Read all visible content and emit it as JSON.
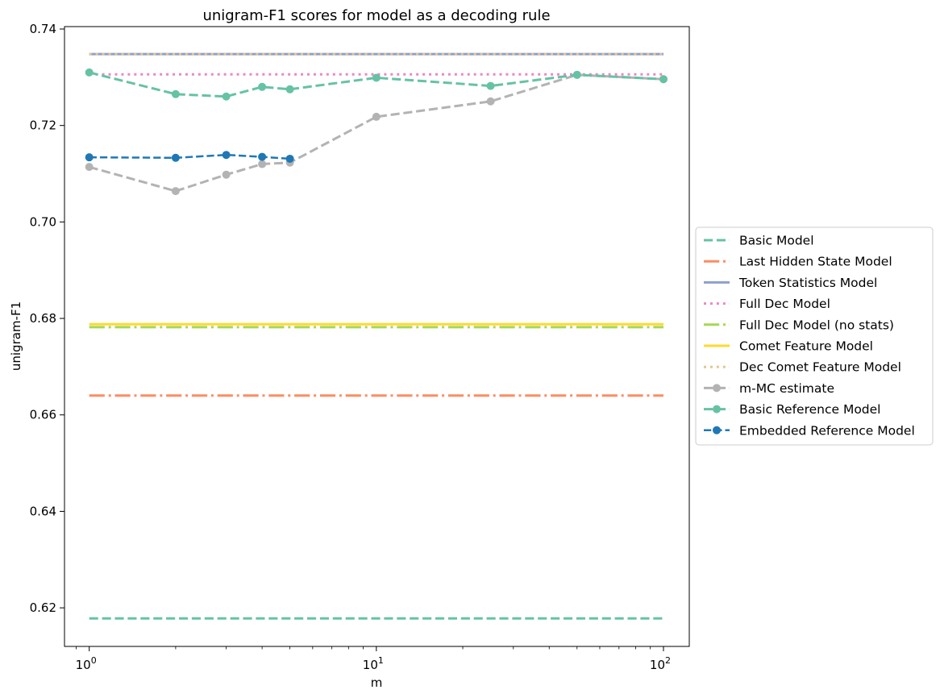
{
  "chart_data": {
    "type": "line",
    "title": "unigram-F1 scores for model as a decoding rule",
    "xlabel": "m",
    "ylabel": "unigram-F1",
    "xscale": "log",
    "xlim": [
      0.82,
      123
    ],
    "ylim": [
      0.612,
      0.7405
    ],
    "grid": false,
    "legend_position": "center-right-outside",
    "x_ticks": [
      {
        "value": 1,
        "base": "10",
        "exp": "0"
      },
      {
        "value": 10,
        "base": "10",
        "exp": "1"
      },
      {
        "value": 100,
        "base": "10",
        "exp": "2"
      }
    ],
    "y_ticks": [
      "0.62",
      "0.64",
      "0.66",
      "0.68",
      "0.70",
      "0.72",
      "0.74"
    ],
    "series": [
      {
        "name": "Basic Model",
        "kind": "hline",
        "x": [
          1,
          100
        ],
        "y": [
          0.6178,
          0.6178
        ],
        "color": "#66c2a5",
        "dash": "dashed",
        "width": 3,
        "marker": false
      },
      {
        "name": "Last Hidden State Model",
        "kind": "hline",
        "x": [
          1,
          100
        ],
        "y": [
          0.664,
          0.664
        ],
        "color": "#fc8d62",
        "dash": "dashdot",
        "width": 3,
        "marker": false
      },
      {
        "name": "Token Statistics Model",
        "kind": "hline",
        "x": [
          1,
          100
        ],
        "y": [
          0.7348,
          0.7348
        ],
        "color": "#8da0cb",
        "dash": "solid",
        "width": 3,
        "marker": false
      },
      {
        "name": "Full Dec Model",
        "kind": "hline",
        "x": [
          1,
          100
        ],
        "y": [
          0.7306,
          0.7306
        ],
        "color": "#e78ac3",
        "dash": "dotted",
        "width": 3,
        "marker": false
      },
      {
        "name": "Full Dec Model (no stats)",
        "kind": "hline",
        "x": [
          1,
          100
        ],
        "y": [
          0.6782,
          0.6782
        ],
        "color": "#a6d854",
        "dash": "dashdot",
        "width": 3,
        "marker": false
      },
      {
        "name": "Comet Feature Model",
        "kind": "hline",
        "x": [
          1,
          100
        ],
        "y": [
          0.6788,
          0.6788
        ],
        "color": "#ffd92f",
        "dash": "solid",
        "width": 3,
        "marker": false
      },
      {
        "name": "Dec Comet Feature Model",
        "kind": "hline",
        "x": [
          1,
          100
        ],
        "y": [
          0.7348,
          0.7348
        ],
        "color": "#e5c494",
        "dash": "dotted",
        "width": 3,
        "marker": false
      },
      {
        "name": "m-MC estimate",
        "kind": "line",
        "x": [
          1,
          2,
          3,
          4,
          5,
          10,
          25,
          50,
          100
        ],
        "y": [
          0.7114,
          0.7064,
          0.7098,
          0.712,
          0.7123,
          0.7218,
          0.725,
          0.7305,
          0.7296
        ],
        "color": "#b3b3b3",
        "dash": "dashed",
        "width": 3,
        "marker": true
      },
      {
        "name": "Basic Reference Model",
        "kind": "line",
        "x": [
          1,
          2,
          3,
          4,
          5,
          10,
          25,
          50,
          100
        ],
        "y": [
          0.731,
          0.7265,
          0.726,
          0.728,
          0.7275,
          0.7299,
          0.7282,
          0.7305,
          0.7296
        ],
        "color": "#66c2a5",
        "dash": "dashed",
        "width": 3,
        "marker": true
      },
      {
        "name": "Embedded Reference Model",
        "kind": "line",
        "x": [
          1,
          2,
          3,
          4,
          5
        ],
        "y": [
          0.7134,
          0.7133,
          0.7139,
          0.7135,
          0.7131
        ],
        "color": "#1f78b4",
        "dash": "dashed",
        "width": 2.5,
        "marker": true
      }
    ]
  }
}
